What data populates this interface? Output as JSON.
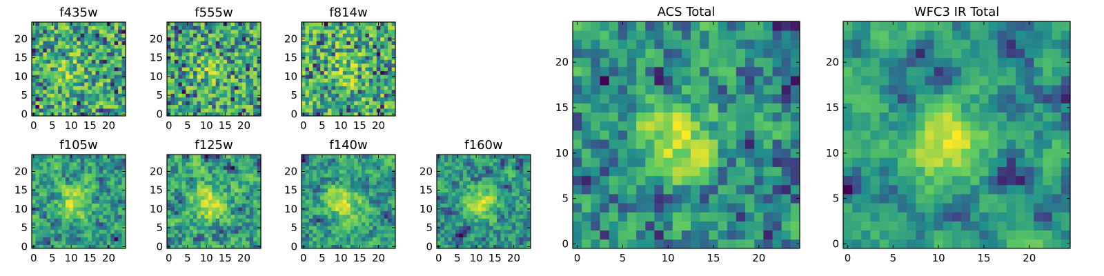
{
  "figure": {
    "colormap": "viridis",
    "colormap_stops": [
      "#440154",
      "#3b528b",
      "#21918c",
      "#5ec962",
      "#fde725"
    ]
  },
  "chart_data": [
    {
      "type": "heatmap",
      "title": "f435w",
      "xticks": [
        0,
        5,
        10,
        15,
        20
      ],
      "yticks": [
        0,
        5,
        10,
        15,
        20
      ],
      "xlim": [
        0,
        24
      ],
      "ylim": [
        0,
        24
      ],
      "grid": false
    },
    {
      "type": "heatmap",
      "title": "f555w",
      "xticks": [
        0,
        5,
        10,
        15,
        20
      ],
      "yticks": [
        0,
        5,
        10,
        15,
        20
      ],
      "xlim": [
        0,
        24
      ],
      "ylim": [
        0,
        24
      ],
      "grid": false
    },
    {
      "type": "heatmap",
      "title": "f814w",
      "xticks": [
        0,
        5,
        10,
        15,
        20
      ],
      "yticks": [
        0,
        5,
        10,
        15,
        20
      ],
      "xlim": [
        0,
        24
      ],
      "ylim": [
        0,
        24
      ],
      "grid": false
    },
    {
      "type": "heatmap",
      "title": "f105w",
      "xticks": [
        0,
        5,
        10,
        15,
        20
      ],
      "yticks": [
        0,
        5,
        10,
        15,
        20
      ],
      "xlim": [
        0,
        24
      ],
      "ylim": [
        0,
        24
      ],
      "grid": false
    },
    {
      "type": "heatmap",
      "title": "f125w",
      "xticks": [
        0,
        5,
        10,
        15,
        20
      ],
      "yticks": [
        0,
        5,
        10,
        15,
        20
      ],
      "xlim": [
        0,
        24
      ],
      "ylim": [
        0,
        24
      ],
      "grid": false
    },
    {
      "type": "heatmap",
      "title": "f140w",
      "xticks": [
        0,
        5,
        10,
        15,
        20
      ],
      "yticks": [
        0,
        5,
        10,
        15,
        20
      ],
      "xlim": [
        0,
        24
      ],
      "ylim": [
        0,
        24
      ],
      "grid": false
    },
    {
      "type": "heatmap",
      "title": "f160w",
      "xticks": [
        0,
        5,
        10,
        15,
        20
      ],
      "yticks": [
        0,
        5,
        10,
        15,
        20
      ],
      "xlim": [
        0,
        24
      ],
      "ylim": [
        0,
        24
      ],
      "grid": false
    },
    {
      "type": "heatmap",
      "title": "ACS Total",
      "xticks": [
        0,
        5,
        10,
        15,
        20
      ],
      "yticks": [
        0,
        5,
        10,
        15,
        20
      ],
      "xlim": [
        0,
        24
      ],
      "ylim": [
        0,
        24
      ],
      "grid": false
    },
    {
      "type": "heatmap",
      "title": "WFC3 IR Total",
      "xticks": [
        0,
        5,
        10,
        15,
        20
      ],
      "yticks": [
        0,
        5,
        10,
        15,
        20
      ],
      "xlim": [
        0,
        24
      ],
      "ylim": [
        0,
        24
      ],
      "grid": false
    }
  ]
}
